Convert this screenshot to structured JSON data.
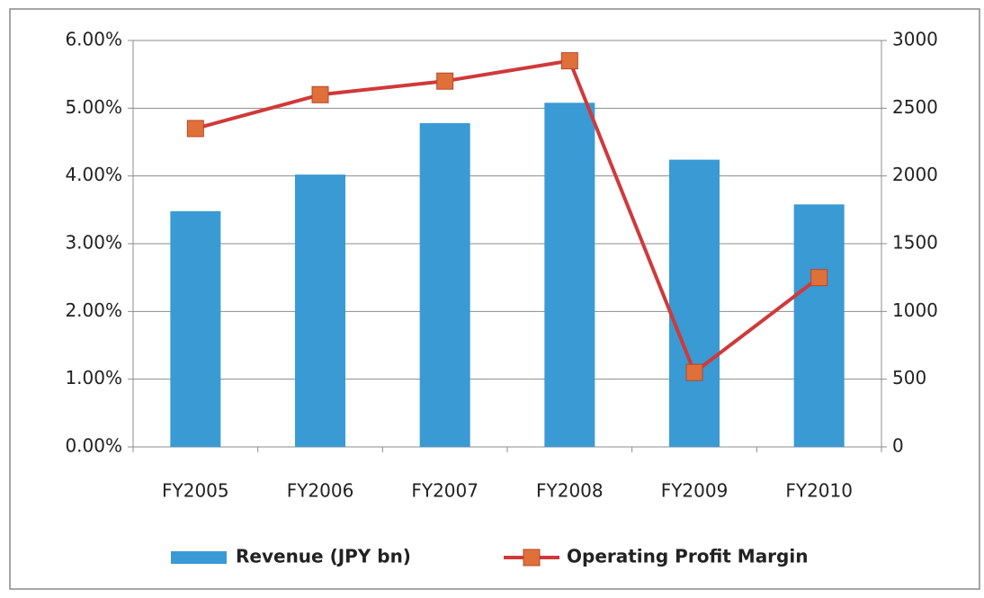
{
  "chart_data": {
    "type": "bar_line",
    "categories": [
      "FY2005",
      "FY2006",
      "FY2007",
      "FY2008",
      "FY2009",
      "FY2010"
    ],
    "series": [
      {
        "name": "Revenue (JPY bn)",
        "type": "bar",
        "axis": "y2",
        "color": "#3a9ad4",
        "values": [
          1740,
          2010,
          2390,
          2540,
          2120,
          1790
        ]
      },
      {
        "name": "Operating Profit Margin",
        "type": "line",
        "axis": "y",
        "color": "#d0393a",
        "marker_color": "#e0703a",
        "values": [
          4.7,
          5.2,
          5.4,
          5.7,
          1.1,
          2.5
        ]
      }
    ],
    "ylim": [
      0,
      6
    ],
    "yticks": [
      {
        "value": 0,
        "label": "0.00%"
      },
      {
        "value": 1,
        "label": "1.00%"
      },
      {
        "value": 2,
        "label": "2.00%"
      },
      {
        "value": 3,
        "label": "3.00%"
      },
      {
        "value": 4,
        "label": "4.00%"
      },
      {
        "value": 5,
        "label": "5.00%"
      },
      {
        "value": 6,
        "label": "6.00%"
      }
    ],
    "y2lim": [
      0,
      3000
    ],
    "y2ticks": [
      0,
      500,
      1000,
      1500,
      2000,
      2500,
      3000
    ],
    "grid": true,
    "legend": "bottom"
  }
}
